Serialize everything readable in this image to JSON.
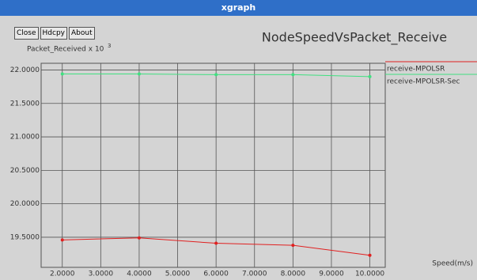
{
  "window": {
    "title": "xgraph",
    "buttons": [
      "Close",
      "Hdcpy",
      "About"
    ]
  },
  "chart_data": {
    "type": "line",
    "title": "NodeSpeedVsPacket_Receive",
    "ylabel": "Packet_Received x 10",
    "ylabel_exponent": "3",
    "xlabel": "Speed(m/s)",
    "x": [
      2,
      4,
      6,
      8,
      10
    ],
    "series": [
      {
        "name": "receive-MPOLSR",
        "color": "#e02020",
        "values": [
          19.46,
          19.49,
          19.41,
          19.38,
          19.23
        ]
      },
      {
        "name": "receive-MPOLSR-Sec",
        "color": "#40e080",
        "values": [
          21.94,
          21.94,
          21.93,
          21.93,
          21.9
        ]
      }
    ],
    "xlim": [
      1.45,
      10.4
    ],
    "ylim": [
      19.05,
      22.1
    ],
    "xticks": [
      {
        "value": 2,
        "label": "2.0000"
      },
      {
        "value": 3,
        "label": "3.0000"
      },
      {
        "value": 4,
        "label": "4.0000"
      },
      {
        "value": 5,
        "label": "5.0000"
      },
      {
        "value": 6,
        "label": "6.0000"
      },
      {
        "value": 7,
        "label": "7.0000"
      },
      {
        "value": 8,
        "label": "8.0000"
      },
      {
        "value": 9,
        "label": "9.0000"
      },
      {
        "value": 10,
        "label": "10.0000"
      }
    ],
    "yticks": [
      {
        "value": 19.5,
        "label": "19.5000"
      },
      {
        "value": 20,
        "label": "20.0000"
      },
      {
        "value": 20.5,
        "label": "20.5000"
      },
      {
        "value": 21,
        "label": "21.0000"
      },
      {
        "value": 21.5,
        "label": "21.5000"
      },
      {
        "value": 22,
        "label": "22.0000"
      }
    ],
    "grid": true
  }
}
